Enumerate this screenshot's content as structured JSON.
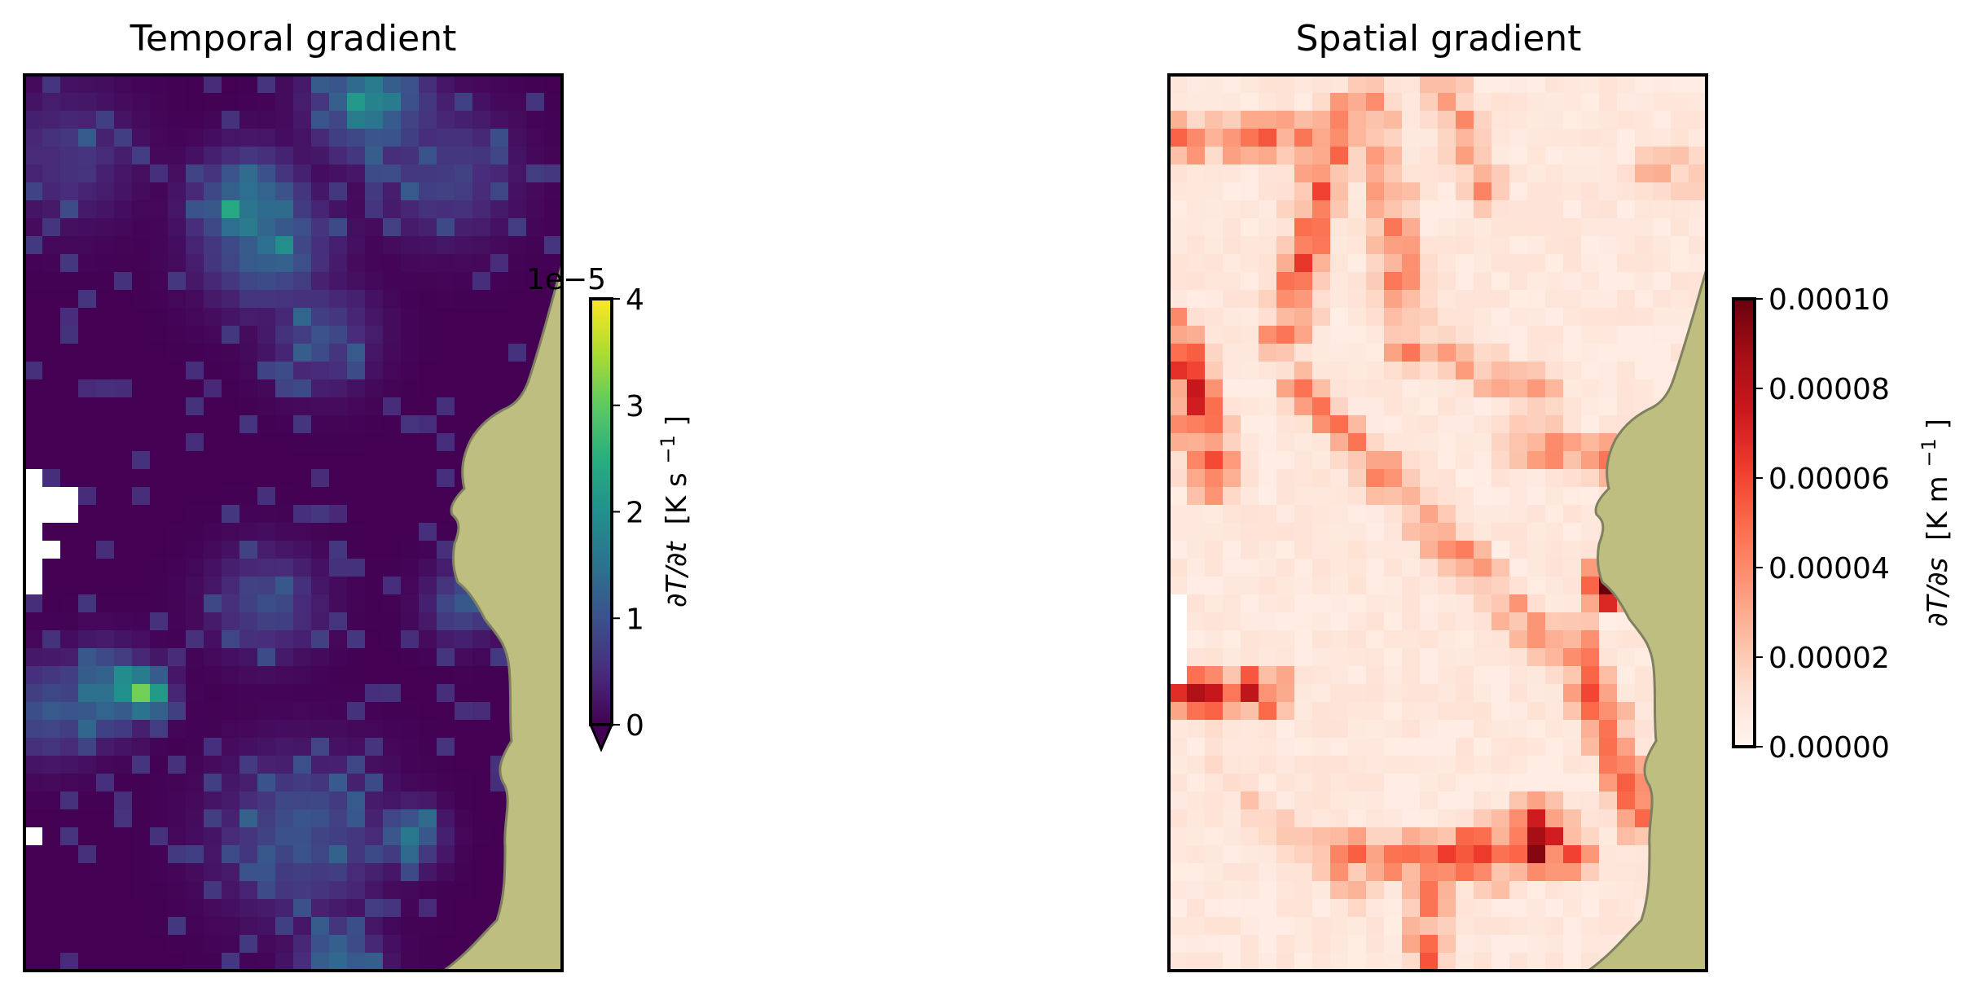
{
  "chart_data": [
    {
      "type": "heatmap",
      "title": "Temporal gradient",
      "colormap": "viridis",
      "colorbar": {
        "label_parts": [
          "∂T/∂t",
          "[K s",
          "−1",
          "]"
        ],
        "offset_text": "1e−5",
        "ticks": [
          "0",
          "1",
          "2",
          "3",
          "4"
        ],
        "tick_values": [
          0,
          1,
          2,
          3,
          4
        ],
        "range": [
          0,
          4
        ],
        "scale": 1e-05,
        "extend": "min"
      },
      "grid": {
        "cols": 30,
        "rows": 50
      },
      "values_1e5": {
        "background": 0.0,
        "hotspots": [
          {
            "col": 19,
            "row": 1,
            "value": 1.6,
            "spread": 2.2
          },
          {
            "col": 12,
            "row": 7,
            "value": 1.8,
            "spread": 2.0
          },
          {
            "col": 13,
            "row": 9,
            "value": 1.3,
            "spread": 2.4
          },
          {
            "col": 6,
            "row": 34,
            "value": 2.9,
            "spread": 1.0
          },
          {
            "col": 4,
            "row": 34,
            "value": 1.7,
            "spread": 1.6
          },
          {
            "col": 1,
            "row": 35,
            "value": 1.1,
            "spread": 1.8
          },
          {
            "col": 16,
            "row": 14,
            "value": 0.9,
            "spread": 2.0
          },
          {
            "col": 23,
            "row": 5,
            "value": 0.8,
            "spread": 2.5
          },
          {
            "col": 13,
            "row": 29,
            "value": 0.9,
            "spread": 2.0
          },
          {
            "col": 21,
            "row": 42,
            "value": 1.5,
            "spread": 1.2
          },
          {
            "col": 15,
            "row": 42,
            "value": 1.0,
            "spread": 3.0
          },
          {
            "col": 17,
            "row": 49,
            "value": 1.4,
            "spread": 1.5
          },
          {
            "col": 24,
            "row": 29,
            "value": 1.0,
            "spread": 1.4
          },
          {
            "col": 2,
            "row": 4,
            "value": 0.6,
            "spread": 2.5
          }
        ]
      },
      "missing_cells": [
        [
          0,
          22
        ],
        [
          0,
          23
        ],
        [
          0,
          24
        ],
        [
          0,
          25
        ],
        [
          0,
          26
        ],
        [
          0,
          27
        ],
        [
          0,
          28
        ],
        [
          1,
          23
        ],
        [
          1,
          24
        ],
        [
          2,
          23
        ],
        [
          2,
          24
        ],
        [
          1,
          26
        ],
        [
          0,
          42
        ]
      ],
      "land_color": "#bdbe80",
      "land_edge": "#7f8060"
    },
    {
      "type": "heatmap",
      "title": "Spatial gradient",
      "colormap": "Reds",
      "colorbar": {
        "label_parts": [
          "∂T/∂s",
          "[K m",
          "−1",
          "]"
        ],
        "ticks": [
          "0.00000",
          "0.00002",
          "0.00004",
          "0.00006",
          "0.00008",
          "0.00010"
        ],
        "tick_values": [
          0,
          2e-05,
          4e-05,
          6e-05,
          8e-05,
          0.0001
        ],
        "range": [
          0,
          0.0001
        ]
      },
      "grid": {
        "cols": 30,
        "rows": 50
      },
      "values": {
        "background": 8e-06,
        "fronts": [
          {
            "c0": 9,
            "r0": 2,
            "c1": 6,
            "r1": 14,
            "value": 4.5e-05
          },
          {
            "c0": 11,
            "r0": 1,
            "c1": 13,
            "r1": 15,
            "value": 3.5e-05
          },
          {
            "c0": 15,
            "r0": 0,
            "c1": 17,
            "r1": 6,
            "value": 3e-05
          },
          {
            "c0": 0,
            "r0": 3,
            "c1": 7,
            "r1": 3,
            "value": 4e-05
          },
          {
            "c0": 0,
            "r0": 14,
            "c1": 2,
            "r1": 22,
            "value": 5.5e-05
          },
          {
            "c0": 7,
            "r0": 17,
            "c1": 20,
            "r1": 31,
            "value": 3.5e-05
          },
          {
            "c0": 14,
            "r0": 15,
            "c1": 20,
            "r1": 17,
            "value": 3e-05
          },
          {
            "c0": 19,
            "r0": 20,
            "c1": 24,
            "r1": 21,
            "value": 3.5e-05
          },
          {
            "c0": 0,
            "r0": 34,
            "c1": 5,
            "r1": 34,
            "value": 6e-05
          },
          {
            "c0": 9,
            "r0": 43,
            "c1": 22,
            "r1": 43,
            "value": 4.5e-05
          },
          {
            "c0": 22,
            "r0": 31,
            "c1": 26,
            "r1": 41,
            "value": 4.5e-05
          },
          {
            "c0": 2,
            "r0": 38,
            "c1": 10,
            "r1": 45,
            "value": 2e-05
          },
          {
            "c0": 14,
            "r0": 44,
            "c1": 14,
            "r1": 50,
            "value": 4e-05
          },
          {
            "c0": 26,
            "r0": 5,
            "c1": 29,
            "r1": 5,
            "value": 2.5e-05
          }
        ],
        "hotspots": [
          {
            "col": 20,
            "row": 42,
            "value": 0.0001,
            "spread": 1.2
          },
          {
            "col": 17,
            "row": 43,
            "value": 6e-05,
            "spread": 1.4
          },
          {
            "col": 24,
            "row": 28,
            "value": 9e-05,
            "spread": 0.9
          }
        ]
      },
      "missing_cells": [
        [
          0,
          29
        ],
        [
          0,
          30
        ],
        [
          0,
          31
        ],
        [
          0,
          32
        ],
        [
          0,
          33
        ]
      ],
      "land_color": "#bdbe80",
      "land_edge": "#7f8060"
    }
  ]
}
